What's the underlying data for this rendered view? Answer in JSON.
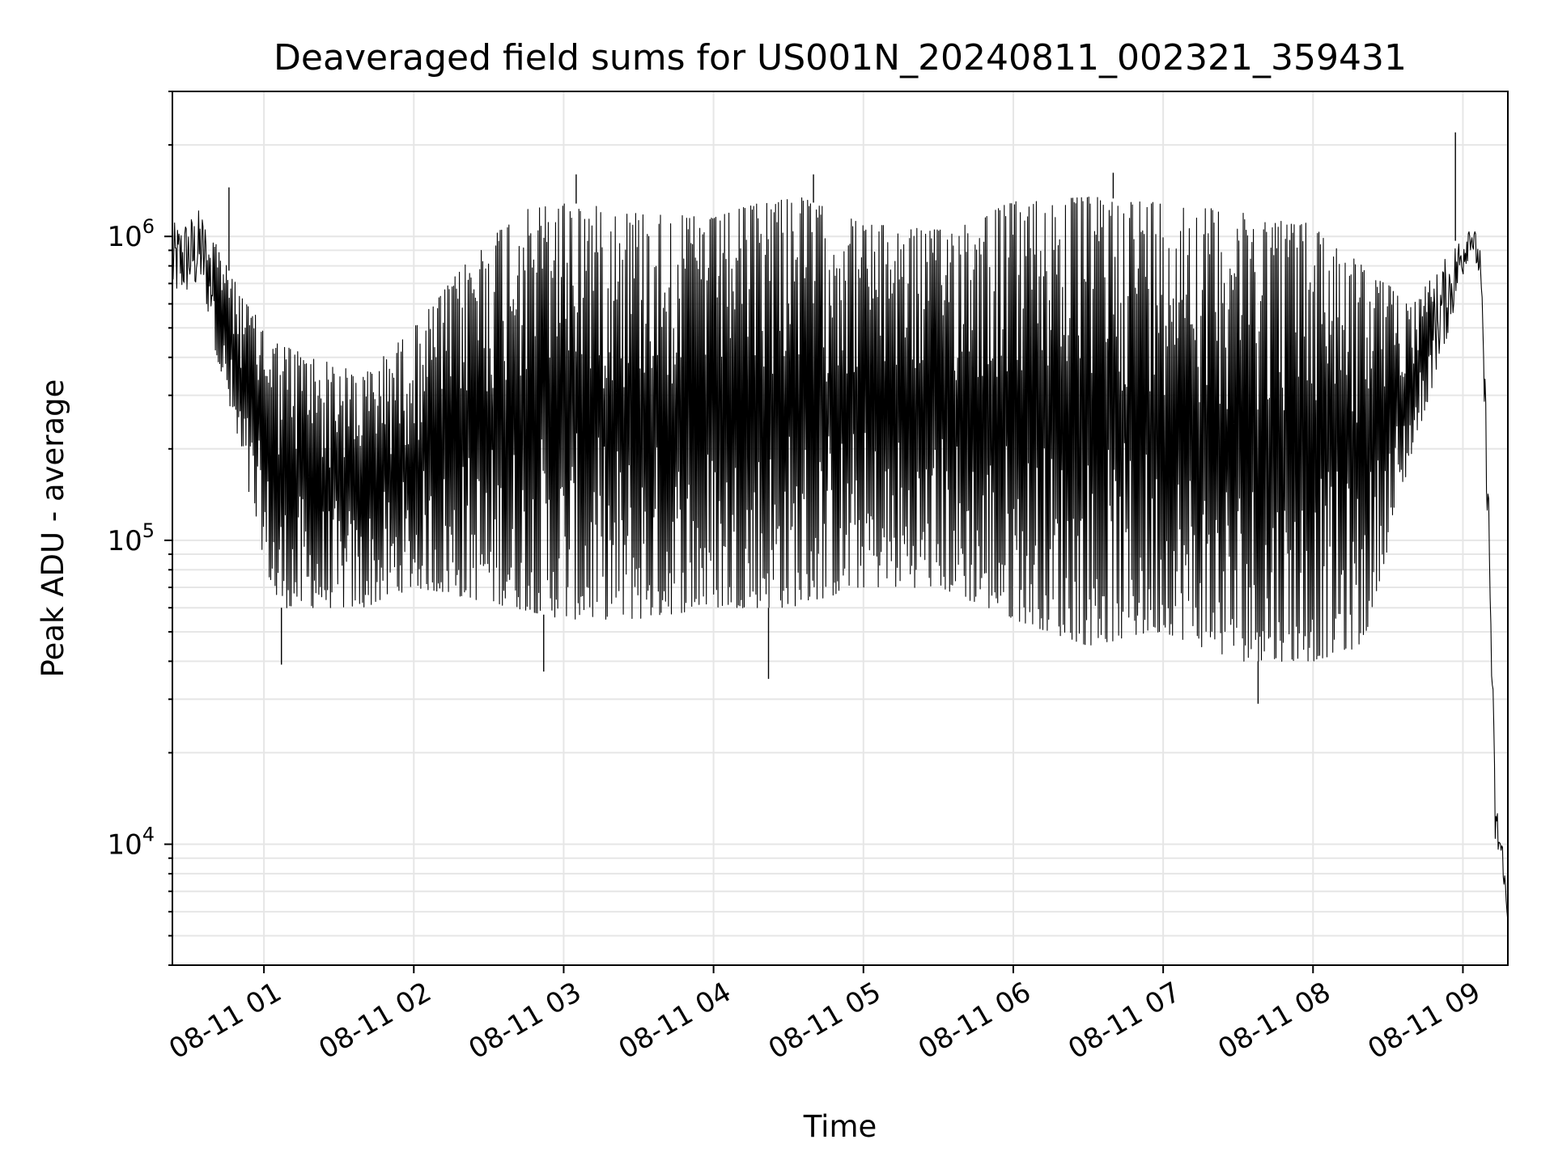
{
  "chart_data": {
    "type": "line",
    "title": "Deaveraged field sums for US001N_20240811_002321_359431",
    "xlabel": "Time",
    "ylabel": "Peak ADU - average",
    "yscale": "log",
    "ylim": [
      4000,
      3000000
    ],
    "xlim": [
      "2024-08-11 00:23:21",
      "2024-08-11 09:18:00"
    ],
    "x_ticks": [
      {
        "label": "08-11 01",
        "t": "2024-08-11 01:00"
      },
      {
        "label": "08-11 02",
        "t": "2024-08-11 02:00"
      },
      {
        "label": "08-11 03",
        "t": "2024-08-11 03:00"
      },
      {
        "label": "08-11 04",
        "t": "2024-08-11 04:00"
      },
      {
        "label": "08-11 05",
        "t": "2024-08-11 05:00"
      },
      {
        "label": "08-11 06",
        "t": "2024-08-11 06:00"
      },
      {
        "label": "08-11 07",
        "t": "2024-08-11 07:00"
      },
      {
        "label": "08-11 08",
        "t": "2024-08-11 08:00"
      },
      {
        "label": "08-11 09",
        "t": "2024-08-11 09:00"
      }
    ],
    "y_ticks": [
      {
        "base": "10",
        "exp": "4",
        "value": 10000
      },
      {
        "base": "10",
        "exp": "5",
        "value": 100000
      },
      {
        "base": "10",
        "exp": "6",
        "value": 1000000
      }
    ],
    "grid": true,
    "line_color": "#000000",
    "grid_color": "#e6e6e6",
    "series": [
      {
        "envelope": [
          {
            "t": "2024-08-11 00:23:21",
            "hi": 1100000,
            "lo": 600000
          },
          {
            "t": "2024-08-11 00:35",
            "hi": 1250000,
            "lo": 650000
          },
          {
            "t": "2024-08-11 00:45",
            "hi": 800000,
            "lo": 300000
          },
          {
            "t": "2024-08-11 00:53",
            "hi": 600000,
            "lo": 150000
          },
          {
            "t": "2024-08-11 01:05",
            "hi": 450000,
            "lo": 60000
          },
          {
            "t": "2024-08-11 01:20",
            "hi": 400000,
            "lo": 60000
          },
          {
            "t": "2024-08-11 01:40",
            "hi": 350000,
            "lo": 60000
          },
          {
            "t": "2024-08-11 02:00",
            "hi": 500000,
            "lo": 70000
          },
          {
            "t": "2024-08-11 02:20",
            "hi": 800000,
            "lo": 65000
          },
          {
            "t": "2024-08-11 02:40",
            "hi": 1200000,
            "lo": 60000
          },
          {
            "t": "2024-08-11 03:00",
            "hi": 1300000,
            "lo": 55000
          },
          {
            "t": "2024-08-11 03:30",
            "hi": 1200000,
            "lo": 55000
          },
          {
            "t": "2024-08-11 04:00",
            "hi": 1150000,
            "lo": 60000
          },
          {
            "t": "2024-08-11 04:30",
            "hi": 1400000,
            "lo": 60000
          },
          {
            "t": "2024-08-11 05:00",
            "hi": 1100000,
            "lo": 70000
          },
          {
            "t": "2024-08-11 05:30",
            "hi": 1050000,
            "lo": 70000
          },
          {
            "t": "2024-08-11 06:00",
            "hi": 1300000,
            "lo": 55000
          },
          {
            "t": "2024-08-11 06:30",
            "hi": 1350000,
            "lo": 45000
          },
          {
            "t": "2024-08-11 07:00",
            "hi": 1300000,
            "lo": 50000
          },
          {
            "t": "2024-08-11 07:30",
            "hi": 1200000,
            "lo": 40000
          },
          {
            "t": "2024-08-11 08:00",
            "hi": 1100000,
            "lo": 40000
          },
          {
            "t": "2024-08-11 08:20",
            "hi": 800000,
            "lo": 45000
          },
          {
            "t": "2024-08-11 08:40",
            "hi": 600000,
            "lo": 200000
          },
          {
            "t": "2024-08-11 08:55",
            "hi": 900000,
            "lo": 500000
          },
          {
            "t": "2024-08-11 09:03",
            "hi": 1200000,
            "lo": 900000
          },
          {
            "t": "2024-08-11 09:07",
            "hi": 900000,
            "lo": 700000
          },
          {
            "t": "2024-08-11 09:10",
            "hi": 200000,
            "lo": 100000
          },
          {
            "t": "2024-08-11 09:13",
            "hi": 15000,
            "lo": 9000
          },
          {
            "t": "2024-08-11 09:16",
            "hi": 10000,
            "lo": 8000
          },
          {
            "t": "2024-08-11 09:18",
            "hi": 6000,
            "lo": 5000
          }
        ],
        "spikes": [
          {
            "t": "2024-08-11 00:46",
            "v": 1450000
          },
          {
            "t": "2024-08-11 01:07",
            "v": 39000
          },
          {
            "t": "2024-08-11 02:52",
            "v": 37000
          },
          {
            "t": "2024-08-11 03:05",
            "v": 1600000
          },
          {
            "t": "2024-08-11 04:22",
            "v": 35000
          },
          {
            "t": "2024-08-11 04:40",
            "v": 1600000
          },
          {
            "t": "2024-08-11 06:40",
            "v": 1620000
          },
          {
            "t": "2024-08-11 07:38",
            "v": 29000
          },
          {
            "t": "2024-08-11 08:57",
            "v": 2200000
          }
        ]
      }
    ]
  }
}
